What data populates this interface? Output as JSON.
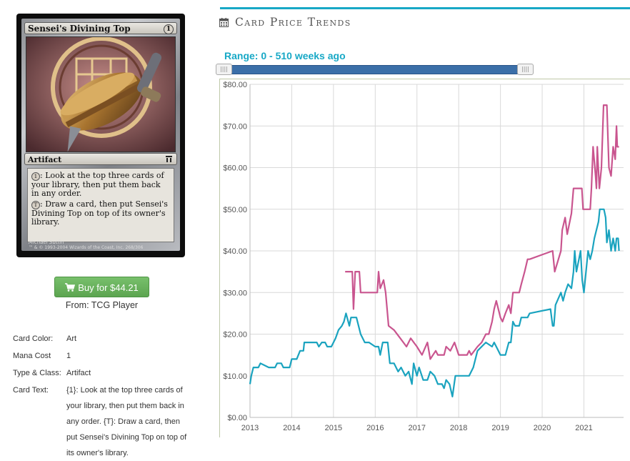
{
  "card": {
    "name": "Sensei's Divining Top",
    "cost": "1",
    "type_line": "Artifact",
    "rules_1_cost": "1",
    "rules_1": ": Look at the top three cards of your library, then put them back in any order.",
    "rules_2_cost": "T",
    "rules_2": ": Draw a card, then put Sensei's Divining Top on top of its owner's library.",
    "artist": "Michael Sutfin",
    "copyright": "™ & © 1993-2004 Wizards of the Coast, Inc. 268/306"
  },
  "buy_button_label": "Buy for $44.21",
  "buy_source": "From: TCG Player",
  "details": [
    {
      "label": "Card Color:",
      "value": "Art"
    },
    {
      "label": "Mana Cost",
      "value": "1"
    },
    {
      "label": "Type & Class:",
      "value": "Artifact"
    },
    {
      "label": "Card Text:",
      "value": "{1}: Look at the top three cards of your library, then put them back in any order. {T}: Draw a card, then put Sensei's Divining Top on top of its owner's library."
    }
  ],
  "chart_title": "Card Price Trends",
  "range_label": "Range: 0 - 510 weeks ago",
  "colors": {
    "accent": "#17a8c6",
    "series_pink": "#c9558f",
    "series_teal": "#1aa3bf",
    "buy_green": "#5ca550"
  },
  "icons": {
    "title": "calendar-icon",
    "buy": "shopping-cart-icon"
  },
  "chart_data": {
    "type": "line",
    "ylim": [
      0,
      80
    ],
    "xlim": [
      2013.0,
      2021.95
    ],
    "y_ticks": [
      "$0.00",
      "$10.00",
      "$20.00",
      "$30.00",
      "$40.00",
      "$50.00",
      "$60.00",
      "$70.00",
      "$80.00"
    ],
    "x_ticks": [
      "2013",
      "2014",
      "2015",
      "2016",
      "2017",
      "2018",
      "2019",
      "2020",
      "2021"
    ],
    "grid": true,
    "series": [
      {
        "color": "#c9558f",
        "points": [
          [
            2015.28,
            35
          ],
          [
            2015.45,
            35
          ],
          [
            2015.48,
            26
          ],
          [
            2015.52,
            35
          ],
          [
            2015.62,
            35
          ],
          [
            2015.65,
            30
          ],
          [
            2016.05,
            30
          ],
          [
            2016.08,
            35
          ],
          [
            2016.12,
            31
          ],
          [
            2016.2,
            33
          ],
          [
            2016.25,
            30
          ],
          [
            2016.32,
            22
          ],
          [
            2016.45,
            21
          ],
          [
            2016.6,
            19
          ],
          [
            2016.75,
            17
          ],
          [
            2016.85,
            19
          ],
          [
            2017.0,
            17
          ],
          [
            2017.12,
            15
          ],
          [
            2017.25,
            18
          ],
          [
            2017.32,
            14
          ],
          [
            2017.45,
            16
          ],
          [
            2017.5,
            15
          ],
          [
            2017.65,
            15
          ],
          [
            2017.7,
            17
          ],
          [
            2017.8,
            16
          ],
          [
            2017.9,
            18
          ],
          [
            2018.0,
            15
          ],
          [
            2018.2,
            15
          ],
          [
            2018.25,
            16
          ],
          [
            2018.3,
            15
          ],
          [
            2018.45,
            17
          ],
          [
            2018.55,
            18
          ],
          [
            2018.65,
            20
          ],
          [
            2018.72,
            20
          ],
          [
            2018.8,
            23
          ],
          [
            2018.85,
            26
          ],
          [
            2018.9,
            28
          ],
          [
            2019.0,
            24
          ],
          [
            2019.05,
            23
          ],
          [
            2019.12,
            25
          ],
          [
            2019.2,
            27
          ],
          [
            2019.25,
            25
          ],
          [
            2019.3,
            30
          ],
          [
            2019.45,
            30
          ],
          [
            2019.5,
            32
          ],
          [
            2019.58,
            35
          ],
          [
            2019.65,
            38
          ],
          [
            2019.7,
            38
          ],
          [
            2020.25,
            40
          ],
          [
            2020.3,
            35
          ],
          [
            2020.45,
            40
          ],
          [
            2020.48,
            45
          ],
          [
            2020.55,
            48
          ],
          [
            2020.6,
            44
          ],
          [
            2020.7,
            49
          ],
          [
            2020.75,
            55
          ],
          [
            2020.95,
            55
          ],
          [
            2020.98,
            50
          ],
          [
            2021.0,
            50
          ],
          [
            2021.15,
            50
          ],
          [
            2021.18,
            55
          ],
          [
            2021.22,
            65
          ],
          [
            2021.28,
            58
          ],
          [
            2021.3,
            55
          ],
          [
            2021.32,
            65
          ],
          [
            2021.37,
            55
          ],
          [
            2021.42,
            60
          ],
          [
            2021.47,
            75
          ],
          [
            2021.55,
            75
          ],
          [
            2021.6,
            60
          ],
          [
            2021.65,
            58
          ],
          [
            2021.7,
            65
          ],
          [
            2021.75,
            62
          ],
          [
            2021.78,
            70
          ],
          [
            2021.8,
            65
          ],
          [
            2021.84,
            65
          ]
        ]
      },
      {
        "color": "#1aa3bf",
        "points": [
          [
            2013.0,
            8
          ],
          [
            2013.03,
            10
          ],
          [
            2013.08,
            12
          ],
          [
            2013.2,
            12
          ],
          [
            2013.25,
            13
          ],
          [
            2013.45,
            12
          ],
          [
            2013.6,
            12
          ],
          [
            2013.65,
            13
          ],
          [
            2013.75,
            13
          ],
          [
            2013.8,
            12
          ],
          [
            2013.95,
            12
          ],
          [
            2014.0,
            14
          ],
          [
            2014.12,
            14
          ],
          [
            2014.2,
            16
          ],
          [
            2014.28,
            16
          ],
          [
            2014.3,
            18
          ],
          [
            2014.6,
            18
          ],
          [
            2014.65,
            17
          ],
          [
            2014.72,
            18
          ],
          [
            2014.8,
            18
          ],
          [
            2014.85,
            17
          ],
          [
            2014.95,
            17
          ],
          [
            2015.05,
            19
          ],
          [
            2015.12,
            21
          ],
          [
            2015.2,
            22
          ],
          [
            2015.25,
            23
          ],
          [
            2015.3,
            25
          ],
          [
            2015.38,
            22
          ],
          [
            2015.42,
            24
          ],
          [
            2015.55,
            24
          ],
          [
            2015.65,
            20
          ],
          [
            2015.75,
            18
          ],
          [
            2015.85,
            18
          ],
          [
            2016.0,
            17
          ],
          [
            2016.08,
            17
          ],
          [
            2016.12,
            15
          ],
          [
            2016.18,
            18
          ],
          [
            2016.3,
            18
          ],
          [
            2016.35,
            13
          ],
          [
            2016.45,
            13
          ],
          [
            2016.55,
            11
          ],
          [
            2016.62,
            12
          ],
          [
            2016.72,
            10
          ],
          [
            2016.8,
            11
          ],
          [
            2016.88,
            8
          ],
          [
            2016.92,
            13
          ],
          [
            2017.0,
            10
          ],
          [
            2017.05,
            12
          ],
          [
            2017.15,
            9
          ],
          [
            2017.25,
            9
          ],
          [
            2017.32,
            11
          ],
          [
            2017.42,
            10
          ],
          [
            2017.5,
            8
          ],
          [
            2017.6,
            8
          ],
          [
            2017.65,
            7
          ],
          [
            2017.7,
            9
          ],
          [
            2017.78,
            8
          ],
          [
            2017.85,
            5
          ],
          [
            2017.92,
            10
          ],
          [
            2018.05,
            10
          ],
          [
            2018.25,
            10
          ],
          [
            2018.35,
            12
          ],
          [
            2018.45,
            16
          ],
          [
            2018.65,
            18
          ],
          [
            2018.8,
            17
          ],
          [
            2018.85,
            18
          ],
          [
            2018.95,
            16
          ],
          [
            2019.0,
            15
          ],
          [
            2019.12,
            15
          ],
          [
            2019.2,
            18
          ],
          [
            2019.25,
            18
          ],
          [
            2019.3,
            23
          ],
          [
            2019.35,
            22
          ],
          [
            2019.45,
            22
          ],
          [
            2019.5,
            24
          ],
          [
            2019.65,
            24
          ],
          [
            2019.7,
            25
          ],
          [
            2020.2,
            26
          ],
          [
            2020.25,
            22
          ],
          [
            2020.28,
            22
          ],
          [
            2020.32,
            27
          ],
          [
            2020.45,
            30
          ],
          [
            2020.5,
            28
          ],
          [
            2020.55,
            30
          ],
          [
            2020.62,
            32
          ],
          [
            2020.7,
            31
          ],
          [
            2020.75,
            35
          ],
          [
            2020.78,
            40
          ],
          [
            2020.82,
            35
          ],
          [
            2020.88,
            38
          ],
          [
            2020.92,
            40
          ],
          [
            2020.96,
            33
          ],
          [
            2021.0,
            30
          ],
          [
            2021.05,
            35
          ],
          [
            2021.1,
            40
          ],
          [
            2021.15,
            38
          ],
          [
            2021.2,
            40
          ],
          [
            2021.25,
            43
          ],
          [
            2021.3,
            45
          ],
          [
            2021.35,
            47
          ],
          [
            2021.38,
            50
          ],
          [
            2021.48,
            50
          ],
          [
            2021.52,
            48
          ],
          [
            2021.55,
            42
          ],
          [
            2021.6,
            45
          ],
          [
            2021.65,
            40
          ],
          [
            2021.7,
            43
          ],
          [
            2021.75,
            40
          ],
          [
            2021.78,
            43
          ],
          [
            2021.82,
            43
          ],
          [
            2021.84,
            40
          ]
        ]
      }
    ]
  }
}
